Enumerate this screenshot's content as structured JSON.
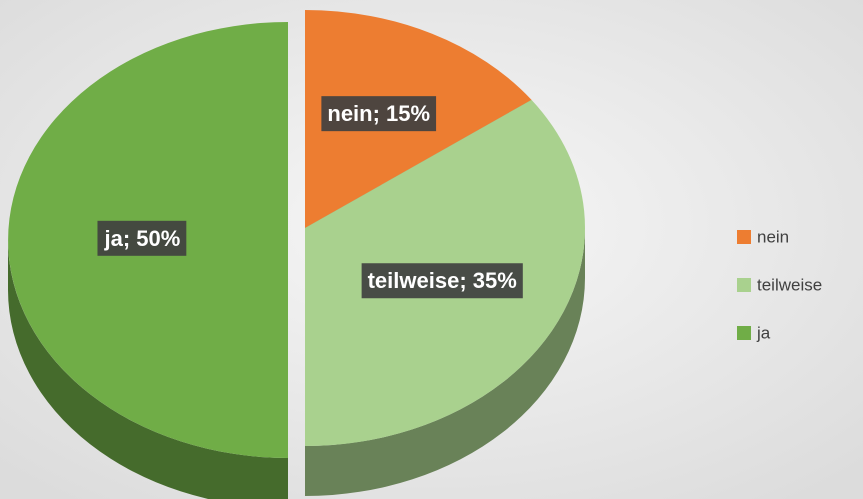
{
  "chart_data": {
    "type": "pie",
    "categories": [
      "nein",
      "teilweise",
      "ja"
    ],
    "values": [
      15,
      35,
      50
    ],
    "value_labels": [
      "nein; 15%",
      "teilweise; 35%",
      "ja; 50%"
    ],
    "colors": [
      "#ed7d31",
      "#a9d18e",
      "#70ad47"
    ],
    "exploded": [
      false,
      false,
      true
    ],
    "legend": "right"
  }
}
